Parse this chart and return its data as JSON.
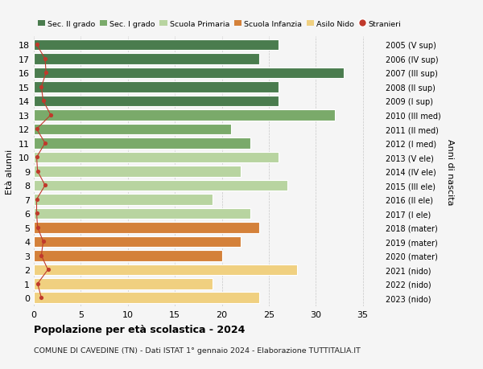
{
  "ages": [
    18,
    17,
    16,
    15,
    14,
    13,
    12,
    11,
    10,
    9,
    8,
    7,
    6,
    5,
    4,
    3,
    2,
    1,
    0
  ],
  "right_labels": [
    "2005 (V sup)",
    "2006 (IV sup)",
    "2007 (III sup)",
    "2008 (II sup)",
    "2009 (I sup)",
    "2010 (III med)",
    "2011 (II med)",
    "2012 (I med)",
    "2013 (V ele)",
    "2014 (IV ele)",
    "2015 (III ele)",
    "2016 (II ele)",
    "2017 (I ele)",
    "2018 (mater)",
    "2019 (mater)",
    "2020 (mater)",
    "2021 (nido)",
    "2022 (nido)",
    "2023 (nido)"
  ],
  "bar_values": [
    26,
    24,
    33,
    26,
    26,
    32,
    21,
    23,
    26,
    22,
    27,
    19,
    23,
    24,
    22,
    20,
    28,
    19,
    24
  ],
  "bar_colors": [
    "#4a7c4e",
    "#4a7c4e",
    "#4a7c4e",
    "#4a7c4e",
    "#4a7c4e",
    "#7aaa6a",
    "#7aaa6a",
    "#7aaa6a",
    "#b8d4a0",
    "#b8d4a0",
    "#b8d4a0",
    "#b8d4a0",
    "#b8d4a0",
    "#d4813a",
    "#d4813a",
    "#d4813a",
    "#f0d080",
    "#f0d080",
    "#f0d080"
  ],
  "stranieri_values": [
    0.3,
    1.2,
    1.3,
    0.8,
    1.0,
    1.8,
    0.3,
    1.2,
    0.3,
    0.4,
    1.2,
    0.3,
    0.3,
    0.4,
    1.0,
    0.8,
    1.5,
    0.4,
    0.8
  ],
  "legend_labels": [
    "Sec. II grado",
    "Sec. I grado",
    "Scuola Primaria",
    "Scuola Infanzia",
    "Asilo Nido",
    "Stranieri"
  ],
  "legend_colors": [
    "#4a7c4e",
    "#7aaa6a",
    "#b8d4a0",
    "#d4813a",
    "#f0d080",
    "#c0392b"
  ],
  "title": "Popolazione per età scolastica - 2024",
  "subtitle": "COMUNE DI CAVEDINE (TN) - Dati ISTAT 1° gennaio 2024 - Elaborazione TUTTITALIA.IT",
  "ylabel_left": "Età alunni",
  "ylabel_right": "Anni di nascita",
  "xlim": [
    0,
    37
  ],
  "xticks": [
    0,
    5,
    10,
    15,
    20,
    25,
    30,
    35
  ],
  "bg_color": "#f5f5f5",
  "bar_height": 0.78,
  "stranieri_dot_color": "#c0392b",
  "stranieri_line_color": "#c0392b"
}
